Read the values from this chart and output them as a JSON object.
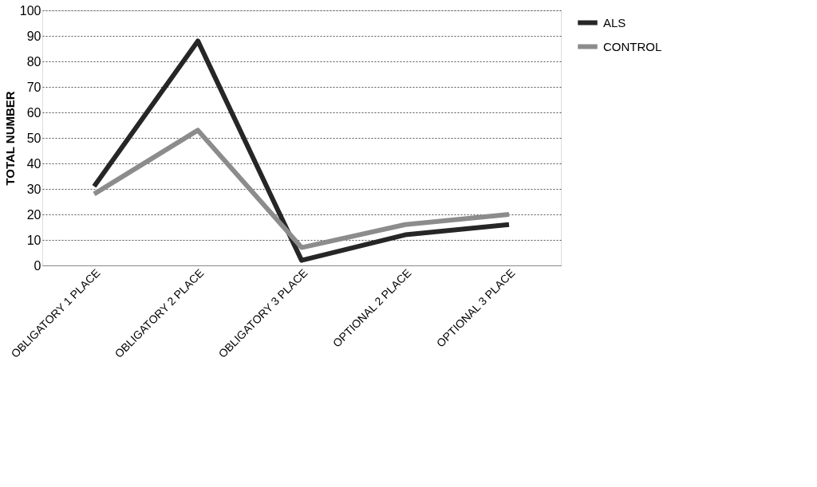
{
  "chart_data": {
    "type": "line",
    "ylabel": "TOTAL NUMBER",
    "categories": [
      "OBLIGATORY 1 PLACE",
      "OBLIGATORY 2 PLACE",
      "OBLIGATORY 3 PLACE",
      "OPTIONAL 2 PLACE",
      "OPTIONAL 3 PLACE"
    ],
    "series": [
      {
        "name": "ALS",
        "color": "#262626",
        "values": [
          31,
          88,
          2,
          12,
          16
        ]
      },
      {
        "name": "CONTROL",
        "color": "#8c8c8c",
        "values": [
          28,
          53,
          7,
          16,
          20
        ]
      }
    ],
    "ylim": [
      0,
      100
    ],
    "yticks": [
      0,
      10,
      20,
      30,
      40,
      50,
      60,
      70,
      80,
      90,
      100
    ],
    "grid": "y",
    "legend": "right",
    "marker": "none",
    "line_style": "solid"
  }
}
